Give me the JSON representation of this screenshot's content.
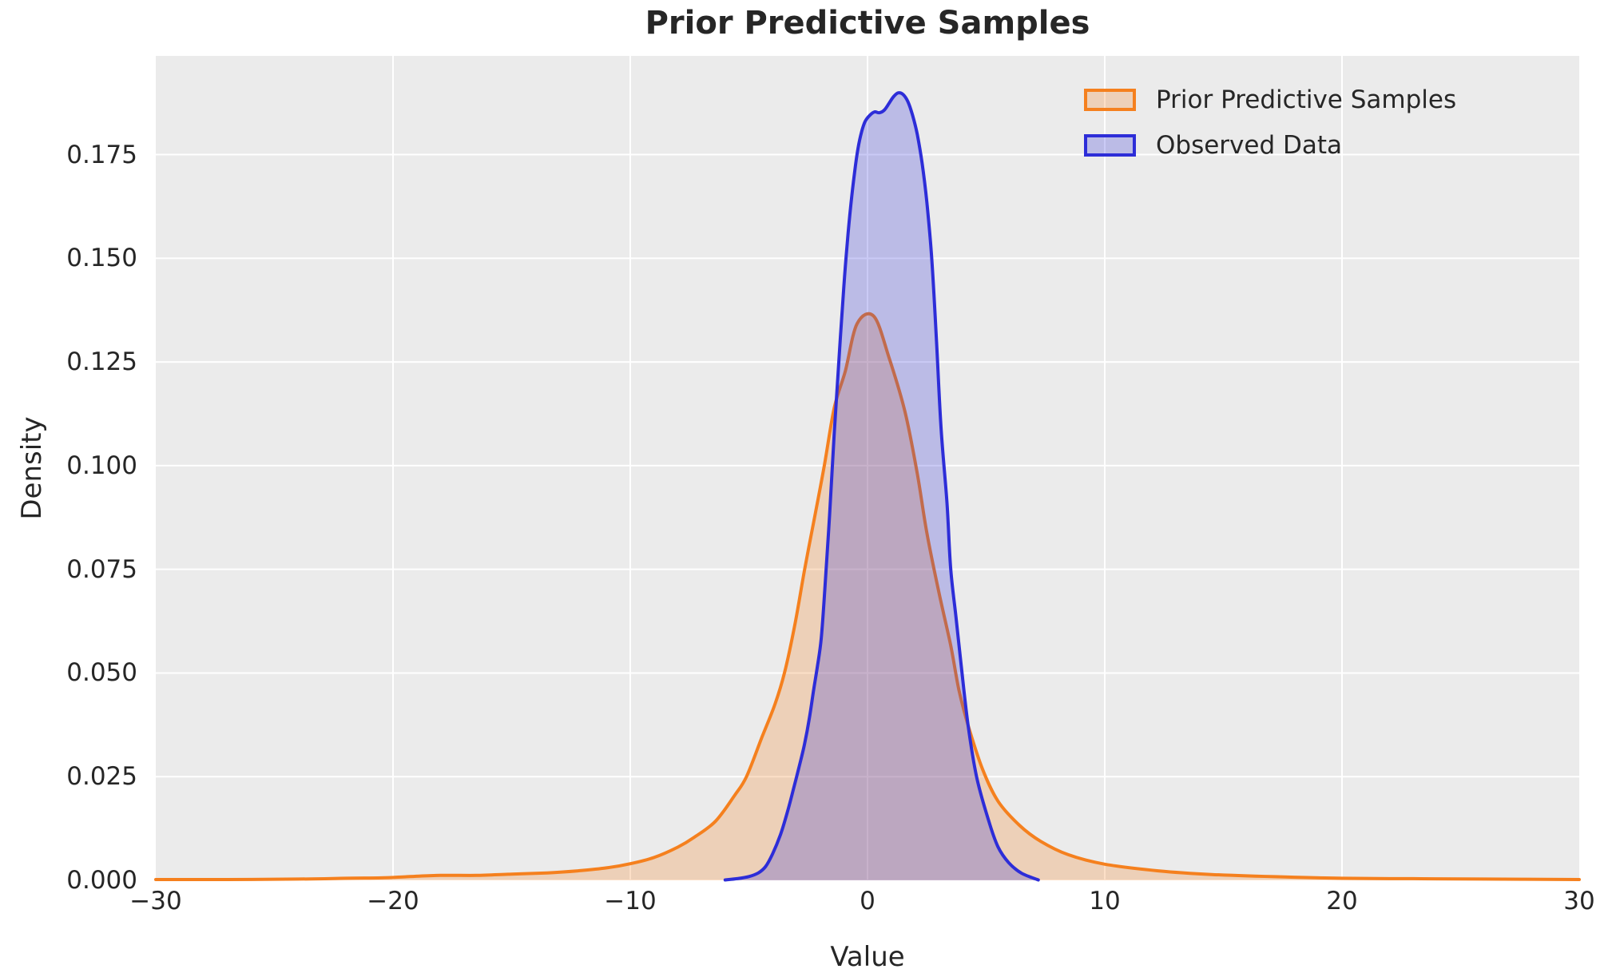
{
  "figure": {
    "background": "#ffffff",
    "plot_background": "#ebebeb",
    "grid_color": "#ffffff",
    "text_color": "#262626"
  },
  "chart_data": {
    "type": "area",
    "subtype": "kde-density",
    "title": "Prior Predictive Samples",
    "xlabel": "Value",
    "ylabel": "Density",
    "xlim": [
      -30,
      30
    ],
    "ylim": [
      0,
      0.1988
    ],
    "grid": true,
    "x_ticks": [
      -30,
      -20,
      -10,
      0,
      10,
      20,
      30
    ],
    "x_tick_labels": [
      "−30",
      "−20",
      "−10",
      "0",
      "10",
      "20",
      "30"
    ],
    "y_ticks": [
      0,
      0.025,
      0.05,
      0.075,
      0.1,
      0.125,
      0.15,
      0.175
    ],
    "y_tick_labels": [
      "0.000",
      "0.025",
      "0.050",
      "0.075",
      "0.100",
      "0.125",
      "0.150",
      "0.175"
    ],
    "legend": {
      "position": "upper right",
      "entries": [
        "Prior Predictive Samples",
        "Observed Data"
      ]
    },
    "series": [
      {
        "name": "Prior Predictive Samples",
        "color": "#f5801e",
        "fill": "rgba(245,128,30,0.25)",
        "peak": {
          "x": 0.27,
          "density": 0.136
        },
        "points": [
          [
            -30,
            0.0002
          ],
          [
            -27,
            0.0002
          ],
          [
            -24,
            0.0003
          ],
          [
            -22,
            0.0005
          ],
          [
            -20.5,
            0.0006
          ],
          [
            -19.3,
            0.0009
          ],
          [
            -18,
            0.0012
          ],
          [
            -16.5,
            0.0012
          ],
          [
            -15,
            0.0015
          ],
          [
            -13.5,
            0.0018
          ],
          [
            -12.2,
            0.0023
          ],
          [
            -11,
            0.003
          ],
          [
            -10,
            0.004
          ],
          [
            -9,
            0.0055
          ],
          [
            -8,
            0.008
          ],
          [
            -7.3,
            0.0104
          ],
          [
            -6.4,
            0.0143
          ],
          [
            -5.6,
            0.0205
          ],
          [
            -5.1,
            0.025
          ],
          [
            -4.45,
            0.0345
          ],
          [
            -3.9,
            0.0425
          ],
          [
            -3.5,
            0.05
          ],
          [
            -3.05,
            0.062
          ],
          [
            -2.65,
            0.075
          ],
          [
            -2.2,
            0.0885
          ],
          [
            -1.82,
            0.1
          ],
          [
            -1.4,
            0.114
          ],
          [
            -0.94,
            0.1227
          ],
          [
            -0.44,
            0.1342
          ],
          [
            0.27,
            0.136
          ],
          [
            0.91,
            0.126
          ],
          [
            1.58,
            0.113
          ],
          [
            2.1,
            0.098
          ],
          [
            2.5,
            0.0838
          ],
          [
            3,
            0.0697
          ],
          [
            3.5,
            0.0568
          ],
          [
            3.85,
            0.046
          ],
          [
            4.24,
            0.0374
          ],
          [
            4.85,
            0.0268
          ],
          [
            5.5,
            0.0191
          ],
          [
            6.4,
            0.0133
          ],
          [
            7.3,
            0.0094
          ],
          [
            8.45,
            0.0062
          ],
          [
            10,
            0.0039
          ],
          [
            12.25,
            0.0023
          ],
          [
            14.5,
            0.0014
          ],
          [
            17.6,
            0.0008
          ],
          [
            20,
            0.0005
          ],
          [
            23,
            0.0004
          ],
          [
            26,
            0.0003
          ],
          [
            30,
            0.0002
          ]
        ]
      },
      {
        "name": "Observed Data",
        "color": "#2d2dd8",
        "fill": "rgba(45,45,216,0.25)",
        "peak": {
          "x": 1.3,
          "density": 0.19
        },
        "points": [
          [
            -6,
            0.0001
          ],
          [
            -5.5,
            0.0004
          ],
          [
            -5,
            0.0009
          ],
          [
            -4.6,
            0.0018
          ],
          [
            -4.3,
            0.0033
          ],
          [
            -4,
            0.0064
          ],
          [
            -3.67,
            0.011
          ],
          [
            -3.4,
            0.016
          ],
          [
            -3.13,
            0.0218
          ],
          [
            -2.9,
            0.027
          ],
          [
            -2.66,
            0.0327
          ],
          [
            -2.45,
            0.0391
          ],
          [
            -2.28,
            0.0456
          ],
          [
            -2.1,
            0.052
          ],
          [
            -1.95,
            0.0584
          ],
          [
            -1.8,
            0.07
          ],
          [
            -1.6,
            0.088
          ],
          [
            -1.4,
            0.108
          ],
          [
            -1.2,
            0.126
          ],
          [
            -1,
            0.143
          ],
          [
            -0.85,
            0.154
          ],
          [
            -0.7,
            0.163
          ],
          [
            -0.55,
            0.1705
          ],
          [
            -0.4,
            0.1765
          ],
          [
            -0.25,
            0.1805
          ],
          [
            -0.1,
            0.183
          ],
          [
            0.1,
            0.1845
          ],
          [
            0.3,
            0.1853
          ],
          [
            0.5,
            0.1851
          ],
          [
            0.7,
            0.1857
          ],
          [
            0.9,
            0.1873
          ],
          [
            1.1,
            0.189
          ],
          [
            1.3,
            0.1899
          ],
          [
            1.5,
            0.1895
          ],
          [
            1.7,
            0.1878
          ],
          [
            1.9,
            0.1845
          ],
          [
            2.1,
            0.1798
          ],
          [
            2.3,
            0.173
          ],
          [
            2.5,
            0.1635
          ],
          [
            2.7,
            0.1505
          ],
          [
            2.9,
            0.131
          ],
          [
            3.1,
            0.109
          ],
          [
            3.35,
            0.091
          ],
          [
            3.5,
            0.0755
          ],
          [
            3.73,
            0.0634
          ],
          [
            3.95,
            0.0518
          ],
          [
            4.24,
            0.0374
          ],
          [
            4.6,
            0.0249
          ],
          [
            5.1,
            0.0145
          ],
          [
            5.5,
            0.0081
          ],
          [
            5.96,
            0.0042
          ],
          [
            6.5,
            0.0017
          ],
          [
            7.2,
            0.0001
          ]
        ]
      }
    ]
  }
}
